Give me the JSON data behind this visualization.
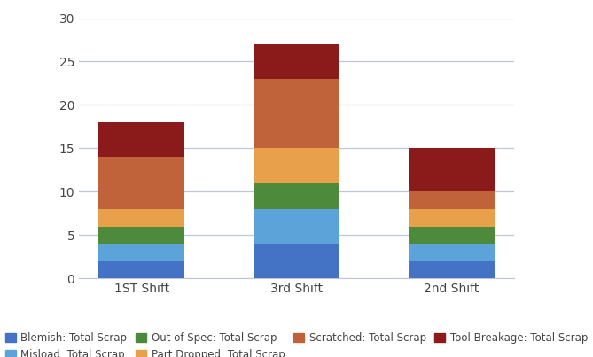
{
  "categories": [
    "1ST Shift",
    "3rd Shift",
    "2nd Shift"
  ],
  "series": {
    "Blemish: Total Scrap": [
      2,
      4,
      2
    ],
    "Misload: Total Scrap": [
      2,
      4,
      2
    ],
    "Out of Spec: Total Scrap": [
      2,
      3,
      2
    ],
    "Part Dropped: Total Scrap": [
      2,
      4,
      2
    ],
    "Scratched: Total Scrap": [
      6,
      8,
      2
    ],
    "Tool Breakage: Total Scrap": [
      4,
      4,
      5
    ]
  },
  "colors": {
    "Blemish: Total Scrap": "#4472C4",
    "Misload: Total Scrap": "#5BA3D9",
    "Out of Spec: Total Scrap": "#4E8A3C",
    "Part Dropped: Total Scrap": "#E8A04A",
    "Scratched: Total Scrap": "#C0623A",
    "Tool Breakage: Total Scrap": "#8B1A1A"
  },
  "ylim": [
    0,
    30
  ],
  "yticks": [
    0,
    5,
    10,
    15,
    20,
    25,
    30
  ],
  "background_color": "#FFFFFF",
  "plot_background": "#FFFFFF",
  "grid_color": "#BDC7D8",
  "bar_width": 0.55,
  "legend_fontsize": 8.5,
  "tick_fontsize": 10,
  "axis_label_color": "#444444"
}
